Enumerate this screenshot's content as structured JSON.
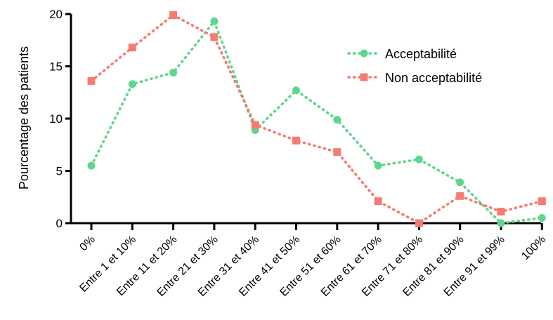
{
  "chart_data": {
    "type": "line",
    "title": "",
    "xlabel": "",
    "ylabel": "Pourcentage  des patients",
    "ylim": [
      0,
      20
    ],
    "yticks": [
      0,
      5,
      10,
      15,
      20
    ],
    "grid": false,
    "legend_position": "top-right",
    "categories": [
      "0%",
      "Entre 1 et 10%",
      "Entre 11 et 20%",
      "Entre 21 et 30%",
      "Entre 31 et 40%",
      "Entre 41 et 50%",
      "Entre 51 et 60%",
      "Entre 61 et 70%",
      "Entre 71 et 80%",
      "Entre 81 et 90%",
      "Entre 91 et 99%",
      "100%"
    ],
    "series": [
      {
        "name": "Acceptabilité",
        "color": "#5fd68e",
        "marker": "circle",
        "line_style": "dotted",
        "values": [
          5.5,
          13.3,
          14.4,
          19.3,
          8.9,
          12.7,
          9.9,
          5.5,
          6.1,
          3.9,
          0.0,
          0.5
        ]
      },
      {
        "name": "Non acceptabilité",
        "color": "#f47c70",
        "marker": "square",
        "line_style": "dotted",
        "values": [
          13.6,
          16.8,
          19.9,
          17.8,
          9.4,
          7.9,
          6.8,
          2.1,
          0.0,
          2.6,
          1.1,
          2.1
        ]
      }
    ]
  }
}
